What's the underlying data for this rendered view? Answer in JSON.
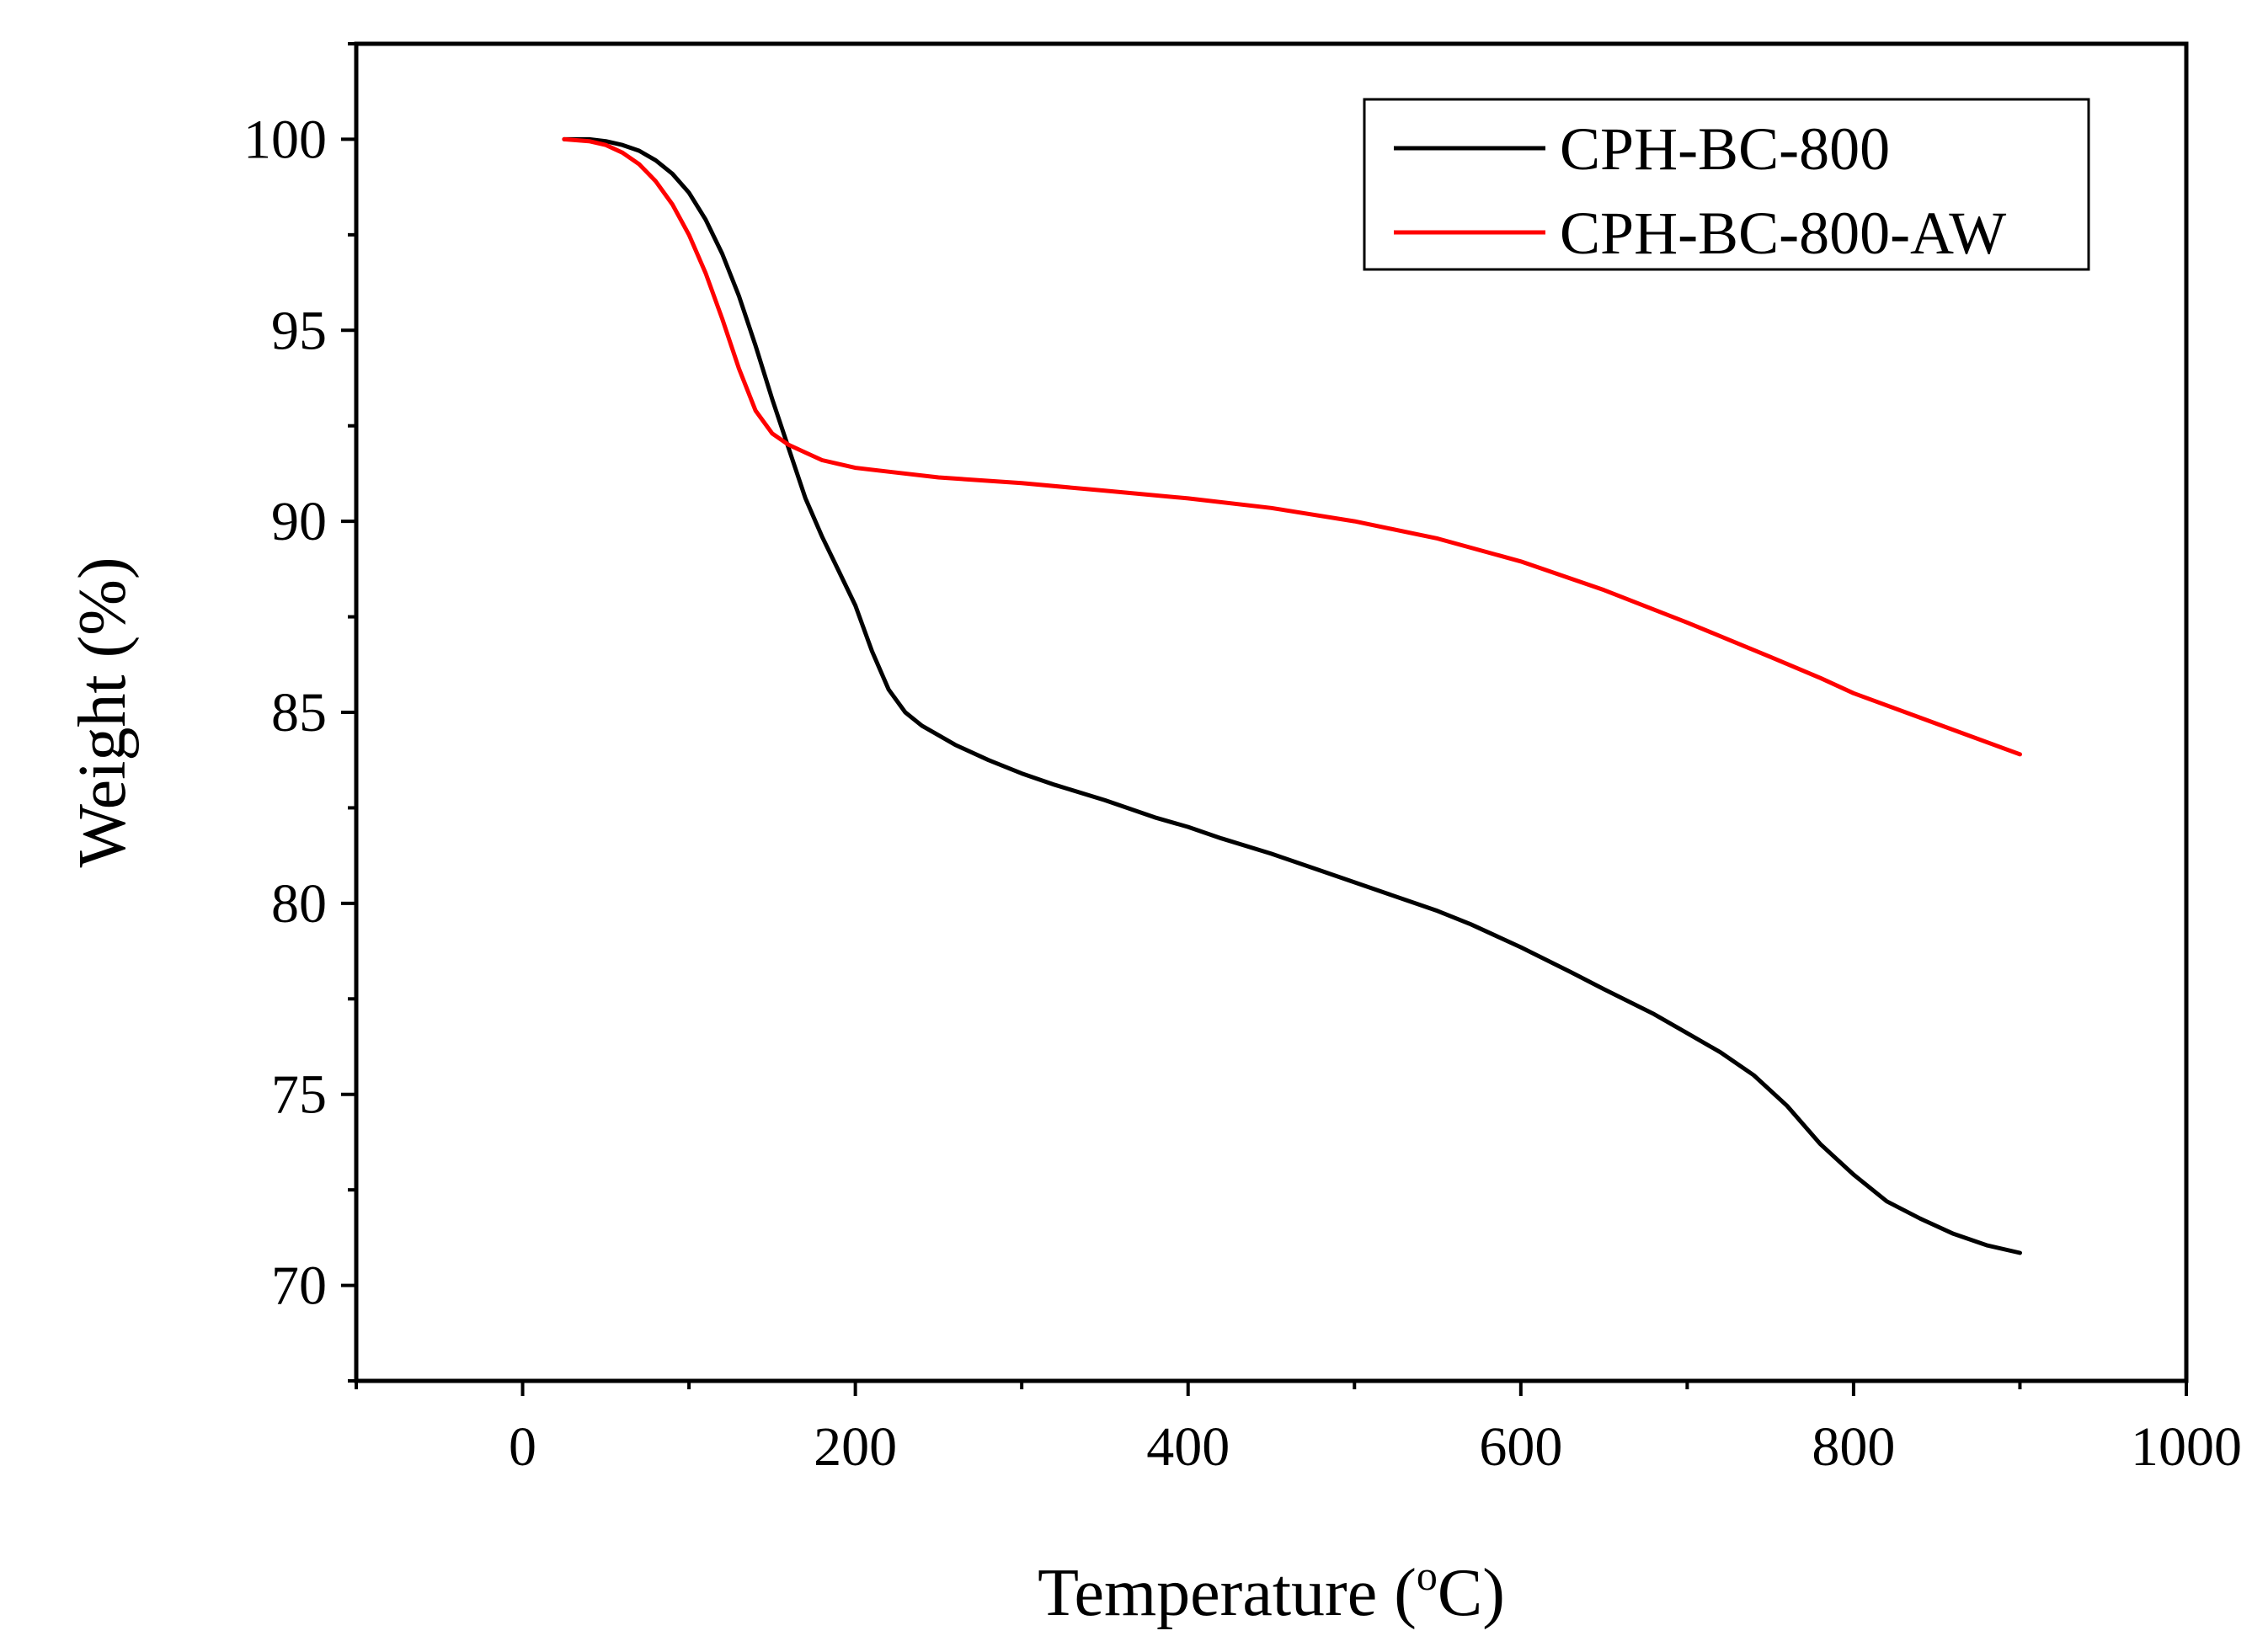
{
  "chart_data": {
    "type": "line",
    "title": "",
    "xlabel": "Temperature (",
    "xlabel_sup": "o",
    "xlabel_unit": "C)",
    "ylabel": "Weight (%)",
    "xlim": [
      -100,
      1000
    ],
    "ylim": [
      67.5,
      102.5
    ],
    "xticks": [
      0,
      200,
      400,
      600,
      800,
      1000
    ],
    "xtick_labels": [
      "0",
      "200",
      "400",
      "600",
      "800",
      "1000"
    ],
    "yticks": [
      70,
      75,
      80,
      85,
      90,
      95,
      100
    ],
    "ytick_labels": [
      "70",
      "75",
      "80",
      "85",
      "90",
      "95",
      "100"
    ],
    "grid": false,
    "legend_position": "top-right",
    "series": [
      {
        "name": "CPH-BC-800",
        "color": "#000000",
        "x": [
          25,
          40,
          50,
          60,
          70,
          80,
          90,
          100,
          110,
          120,
          130,
          140,
          150,
          160,
          170,
          180,
          190,
          200,
          210,
          220,
          230,
          240,
          250,
          260,
          280,
          300,
          320,
          350,
          380,
          400,
          420,
          450,
          480,
          500,
          520,
          550,
          570,
          600,
          630,
          650,
          680,
          700,
          720,
          740,
          760,
          780,
          800,
          820,
          840,
          860,
          880,
          900
        ],
        "y": [
          100.0,
          100.0,
          99.95,
          99.85,
          99.7,
          99.45,
          99.1,
          98.6,
          97.9,
          97.0,
          95.9,
          94.6,
          93.2,
          91.9,
          90.6,
          89.6,
          88.7,
          87.8,
          86.6,
          85.6,
          85.0,
          84.65,
          84.4,
          84.15,
          83.75,
          83.4,
          83.1,
          82.7,
          82.25,
          82.0,
          81.7,
          81.3,
          80.85,
          80.55,
          80.25,
          79.8,
          79.45,
          78.85,
          78.2,
          77.75,
          77.1,
          76.6,
          76.1,
          75.5,
          74.7,
          73.7,
          72.9,
          72.2,
          71.75,
          71.35,
          71.05,
          70.85
        ]
      },
      {
        "name": "CPH-BC-800-AW",
        "color": "#ff0000",
        "x": [
          25,
          40,
          50,
          60,
          70,
          80,
          90,
          100,
          110,
          120,
          130,
          140,
          150,
          160,
          170,
          180,
          190,
          200,
          220,
          250,
          300,
          350,
          400,
          450,
          500,
          550,
          600,
          650,
          700,
          750,
          780,
          800,
          850,
          900
        ],
        "y": [
          100.0,
          99.95,
          99.85,
          99.65,
          99.35,
          98.9,
          98.3,
          97.5,
          96.5,
          95.3,
          94.0,
          92.9,
          92.3,
          92.0,
          91.8,
          91.6,
          91.5,
          91.4,
          91.3,
          91.15,
          91.0,
          90.8,
          90.6,
          90.35,
          90.0,
          89.55,
          88.95,
          88.2,
          87.35,
          86.45,
          85.9,
          85.5,
          84.7,
          83.9
        ]
      }
    ]
  }
}
